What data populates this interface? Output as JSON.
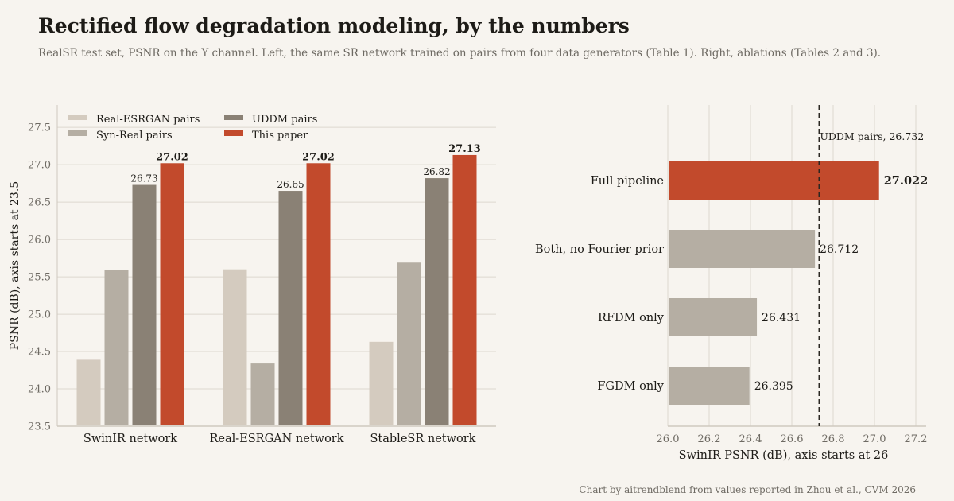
{
  "header": {
    "title": "Rectified flow degradation modeling, by the numbers",
    "subtitle": "RealSR test set, PSNR on the Y channel. Left, the same SR network trained on pairs from four data generators (Table 1). Right, ablations (Tables 2 and 3).",
    "footer": "Chart by aitrendblend from values reported in Zhou et al., CVM 2026"
  },
  "colors": {
    "background": "#f7f4ef",
    "grid": "#ddd8cf",
    "real_esrgan": "#d4cbbf",
    "syn_real": "#b5aea3",
    "uddm": "#8a8175",
    "this_paper": "#c24a2c",
    "text": "#1d1b17",
    "muted": "#6e6a63"
  },
  "chart_data": [
    {
      "type": "bar",
      "ylabel": "PSNR (dB), axis starts at 23.5",
      "ylim": [
        23.5,
        27.8
      ],
      "yticks": [
        "23.5",
        "24.0",
        "24.5",
        "25.0",
        "25.5",
        "26.0",
        "26.5",
        "27.0",
        "27.5"
      ],
      "grid": true,
      "legend_position": "top-left",
      "categories": [
        "SwinIR network",
        "Real-ESRGAN network",
        "StableSR network"
      ],
      "series": [
        {
          "name": "Real-ESRGAN pairs",
          "color": "#d4cbbf",
          "values": [
            24.39,
            25.6,
            24.63
          ]
        },
        {
          "name": "Syn-Real pairs",
          "color": "#b5aea3",
          "values": [
            25.59,
            24.34,
            25.69
          ]
        },
        {
          "name": "UDDM pairs",
          "color": "#8a8175",
          "values": [
            26.73,
            26.65,
            26.82
          ],
          "labels": [
            "26.73",
            "26.65",
            "26.82"
          ]
        },
        {
          "name": "This paper",
          "color": "#c24a2c",
          "values": [
            27.02,
            27.02,
            27.13
          ],
          "labels": [
            "27.02",
            "27.02",
            "27.13"
          ]
        }
      ]
    },
    {
      "type": "bar",
      "orientation": "horizontal",
      "xlabel": "SwinIR PSNR (dB), axis starts at 26",
      "xlim": [
        26.0,
        27.25
      ],
      "xticks": [
        "26.0",
        "26.2",
        "26.4",
        "26.6",
        "26.8",
        "27.0",
        "27.2"
      ],
      "grid": true,
      "categories": [
        "Full pipeline",
        "Both, no Fourier prior",
        "RFDM only",
        "FGDM only"
      ],
      "values": [
        27.022,
        26.712,
        26.431,
        26.395
      ],
      "labels": [
        "27.022",
        "26.712",
        "26.431",
        "26.395"
      ],
      "highlight": "Full pipeline",
      "reference_line": {
        "value": 26.732,
        "label": "UDDM pairs, 26.732"
      }
    }
  ]
}
